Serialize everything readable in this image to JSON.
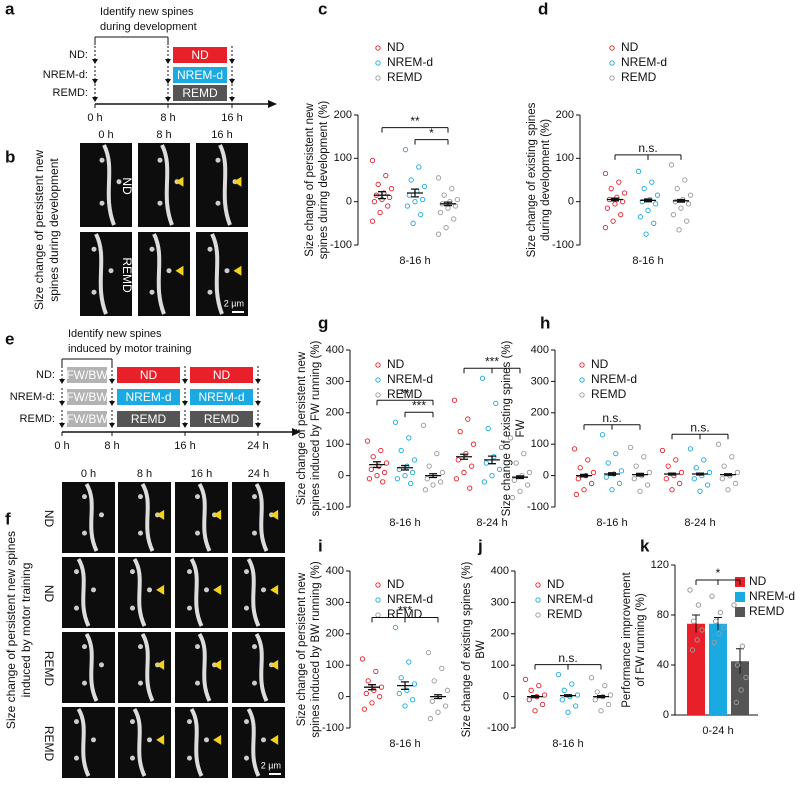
{
  "schematics": [
    {
      "panel": "a",
      "title": [
        "Identify new spines",
        "during development"
      ],
      "times": [
        "0 h",
        "8 h",
        "16 h"
      ],
      "rows": [
        {
          "label": "ND:",
          "boxes": [
            "ND"
          ],
          "colors": [
            "#e8202a"
          ]
        },
        {
          "label": "NREM-d:",
          "boxes": [
            "NREM-d"
          ],
          "colors": [
            "#1ba9e1"
          ]
        },
        {
          "label": "REMD:",
          "boxes": [
            "REMD"
          ],
          "colors": [
            "#555555"
          ]
        }
      ]
    },
    {
      "panel": "e",
      "title": [
        "Identify new spines",
        "induced by motor training"
      ],
      "times": [
        "0 h",
        "8 h",
        "16 h",
        "24 h"
      ],
      "rows": [
        {
          "label": "ND:",
          "boxes": [
            "FW/BW",
            "ND",
            "ND"
          ],
          "colors": [
            "#b3b3b3",
            "#e8202a",
            "#e8202a"
          ]
        },
        {
          "label": "NREM-d:",
          "boxes": [
            "FW/BW",
            "NREM-d",
            "NREM-d"
          ],
          "colors": [
            "#b3b3b3",
            "#1ba9e1",
            "#1ba9e1"
          ]
        },
        {
          "label": "REMD:",
          "boxes": [
            "FW/BW",
            "REMD",
            "REMD"
          ],
          "colors": [
            "#b3b3b3",
            "#555555",
            "#555555"
          ]
        }
      ]
    }
  ],
  "images": [
    {
      "panel": "b",
      "ylabel": [
        "Size change of persistent new",
        "spines during development"
      ],
      "times": [
        "0 h",
        "8 h",
        "16 h"
      ],
      "rows": [
        "ND",
        "REMD"
      ],
      "scale": "2 µm"
    },
    {
      "panel": "f",
      "ylabel": [
        "Size change of persistent new spines",
        "induced by motor training"
      ],
      "times": [
        "0 h",
        "8 h",
        "16 h",
        "24 h"
      ],
      "rows": [
        "ND",
        "ND",
        "REMD",
        "REMD"
      ],
      "scale": "2 µm"
    }
  ],
  "chart_data": [
    {
      "type": "dot",
      "panel": "c",
      "ylabel": [
        "Size change of persistent new",
        "spines during development (%)"
      ],
      "ylim": [
        -100,
        200
      ],
      "yticks": [
        -100,
        0,
        100,
        200
      ],
      "categories": [
        "8-16 h"
      ],
      "series": [
        {
          "name": "ND",
          "color": "#e8202a",
          "values": [
            [
              95,
              60,
              40,
              30,
              20,
              15,
              10,
              5,
              0,
              -10,
              -25,
              -45
            ]
          ],
          "mean": [
            15
          ],
          "sem": [
            8
          ]
        },
        {
          "name": "NREM-d",
          "color": "#1ba9e1",
          "values": [
            [
              120,
              80,
              50,
              35,
              25,
              15,
              5,
              0,
              -10,
              -30,
              -50
            ]
          ],
          "mean": [
            20
          ],
          "sem": [
            9
          ]
        },
        {
          "name": "REMD",
          "color": "#999999",
          "values": [
            [
              55,
              30,
              15,
              5,
              0,
              -5,
              -10,
              -15,
              -25,
              -40,
              -60,
              -75
            ]
          ],
          "mean": [
            -5
          ],
          "sem": [
            4
          ]
        }
      ],
      "comparisons": [
        {
          "category": "8-16 h",
          "label": "**",
          "between": [
            "ND",
            "REMD"
          ]
        },
        {
          "category": "8-16 h",
          "label": "*",
          "between": [
            "NREM-d",
            "REMD"
          ]
        }
      ]
    },
    {
      "type": "dot",
      "panel": "d",
      "ylabel": [
        "Size change of existing spines",
        "during development (%)"
      ],
      "ylim": [
        -100,
        200
      ],
      "yticks": [
        -100,
        0,
        100,
        200
      ],
      "categories": [
        "8-16 h"
      ],
      "series": [
        {
          "name": "ND",
          "color": "#e8202a",
          "values": [
            [
              65,
              45,
              30,
              20,
              10,
              5,
              0,
              -5,
              -15,
              -30,
              -45,
              -60
            ]
          ],
          "mean": [
            5
          ],
          "sem": [
            3
          ]
        },
        {
          "name": "NREM-d",
          "color": "#1ba9e1",
          "values": [
            [
              70,
              45,
              30,
              15,
              5,
              0,
              -5,
              -20,
              -35,
              -50,
              -75
            ]
          ],
          "mean": [
            3
          ],
          "sem": [
            3
          ]
        },
        {
          "name": "REMD",
          "color": "#999999",
          "values": [
            [
              85,
              50,
              30,
              15,
              5,
              0,
              -5,
              -15,
              -30,
              -45,
              -65
            ]
          ],
          "mean": [
            2
          ],
          "sem": [
            3
          ]
        }
      ],
      "comparisons": [
        {
          "category": "8-16 h",
          "label": "n.s.",
          "between": [
            "ND",
            "NREM-d",
            "REMD"
          ]
        }
      ]
    },
    {
      "type": "dot",
      "panel": "g",
      "ylabel": [
        "Size change of persistent new",
        "spines induced by FW running (%)"
      ],
      "ylim": [
        -100,
        400
      ],
      "yticks": [
        -100,
        0,
        100,
        200,
        300,
        400
      ],
      "categories": [
        "8-16 h",
        "8-24 h"
      ],
      "series": [
        {
          "name": "ND",
          "color": "#e8202a",
          "values": [
            [
              110,
              80,
              60,
              40,
              30,
              20,
              10,
              0,
              -10,
              -20
            ],
            [
              240,
              180,
              140,
              100,
              70,
              50,
              30,
              10,
              -10,
              -40
            ]
          ],
          "mean": [
            35,
            60
          ],
          "sem": [
            9,
            8
          ]
        },
        {
          "name": "NREM-d",
          "color": "#1ba9e1",
          "values": [
            [
              170,
              120,
              80,
              50,
              30,
              20,
              10,
              0,
              -10,
              -25
            ],
            [
              310,
              230,
              150,
              90,
              60,
              40,
              20,
              0,
              -20
            ]
          ],
          "mean": [
            25,
            50
          ],
          "sem": [
            7,
            12
          ]
        },
        {
          "name": "REMD",
          "color": "#999999",
          "values": [
            [
              160,
              70,
              30,
              10,
              0,
              -10,
              -20,
              -30,
              -45
            ],
            [
              120,
              70,
              40,
              10,
              0,
              -15,
              -30,
              -50,
              -70
            ]
          ],
          "mean": [
            0,
            -5
          ],
          "sem": [
            6,
            4
          ]
        }
      ],
      "comparisons": [
        {
          "category": "8-16 h",
          "label": "**",
          "between": [
            "ND",
            "REMD"
          ]
        },
        {
          "category": "8-16 h",
          "label": "***",
          "between": [
            "NREM-d",
            "REMD"
          ]
        },
        {
          "category": "8-24 h",
          "label": "***",
          "between": [
            "ND",
            "NREM-d",
            "REMD"
          ]
        }
      ]
    },
    {
      "type": "dot",
      "panel": "h",
      "ylabel": [
        "Size change of existing spines (%)",
        "FW"
      ],
      "ylim": [
        -100,
        400
      ],
      "yticks": [
        -100,
        0,
        100,
        200,
        300,
        400
      ],
      "categories": [
        "8-16 h",
        "8-24 h"
      ],
      "series": [
        {
          "name": "ND",
          "color": "#e8202a",
          "values": [
            [
              85,
              50,
              25,
              10,
              0,
              -10,
              -25,
              -45,
              -60
            ],
            [
              80,
              50,
              30,
              10,
              0,
              -10,
              -25,
              -45
            ]
          ],
          "mean": [
            0,
            5
          ],
          "sem": [
            4,
            3
          ]
        },
        {
          "name": "NREM-d",
          "color": "#1ba9e1",
          "values": [
            [
              130,
              70,
              40,
              15,
              5,
              -5,
              -25,
              -45
            ],
            [
              85,
              50,
              25,
              10,
              0,
              -10,
              -30,
              -50
            ]
          ],
          "mean": [
            5,
            5
          ],
          "sem": [
            4,
            3
          ]
        },
        {
          "name": "REMD",
          "color": "#999999",
          "values": [
            [
              90,
              60,
              30,
              10,
              0,
              -10,
              -30,
              -50
            ],
            [
              100,
              60,
              30,
              10,
              0,
              -10,
              -25,
              -45
            ]
          ],
          "mean": [
            3,
            3
          ],
          "sem": [
            4,
            3
          ]
        }
      ],
      "comparisons": [
        {
          "category": "8-16 h",
          "label": "n.s.",
          "between": [
            "ND",
            "NREM-d",
            "REMD"
          ]
        },
        {
          "category": "8-24 h",
          "label": "n.s.",
          "between": [
            "ND",
            "NREM-d",
            "REMD"
          ]
        }
      ]
    },
    {
      "type": "dot",
      "panel": "i",
      "ylabel": [
        "Size change of persistent new",
        "spines induced by BW running (%)"
      ],
      "ylim": [
        -100,
        400
      ],
      "yticks": [
        -100,
        0,
        100,
        200,
        300,
        400
      ],
      "categories": [
        "8-16 h"
      ],
      "series": [
        {
          "name": "ND",
          "color": "#e8202a",
          "values": [
            [
              120,
              80,
              50,
              30,
              20,
              10,
              0,
              -20,
              -40
            ]
          ],
          "mean": [
            30
          ],
          "sem": [
            8
          ]
        },
        {
          "name": "NREM-d",
          "color": "#1ba9e1",
          "values": [
            [
              220,
              110,
              60,
              40,
              20,
              10,
              -10,
              -30
            ]
          ],
          "mean": [
            35
          ],
          "sem": [
            12
          ]
        },
        {
          "name": "REMD",
          "color": "#999999",
          "values": [
            [
              140,
              90,
              50,
              20,
              0,
              -15,
              -30,
              -50,
              -70
            ]
          ],
          "mean": [
            0
          ],
          "sem": [
            6
          ]
        }
      ],
      "comparisons": [
        {
          "category": "8-16 h",
          "label": "***",
          "between": [
            "ND",
            "NREM-d",
            "REMD"
          ]
        }
      ]
    },
    {
      "type": "dot",
      "panel": "j",
      "ylabel": [
        "Size change of existing spines (%)",
        "BW"
      ],
      "ylim": [
        -100,
        400
      ],
      "yticks": [
        -100,
        0,
        100,
        200,
        300,
        400
      ],
      "categories": [
        "8-16 h"
      ],
      "series": [
        {
          "name": "ND",
          "color": "#e8202a",
          "values": [
            [
              55,
              35,
              20,
              5,
              0,
              -10,
              -25,
              -45
            ]
          ],
          "mean": [
            0
          ],
          "sem": [
            3
          ]
        },
        {
          "name": "NREM-d",
          "color": "#1ba9e1",
          "values": [
            [
              70,
              40,
              20,
              5,
              0,
              -10,
              -30,
              -50
            ]
          ],
          "mean": [
            3
          ],
          "sem": [
            3
          ]
        },
        {
          "name": "REMD",
          "color": "#999999",
          "values": [
            [
              60,
              35,
              15,
              5,
              0,
              -10,
              -25,
              -45
            ]
          ],
          "mean": [
            0
          ],
          "sem": [
            3
          ]
        }
      ],
      "comparisons": [
        {
          "category": "8-16 h",
          "label": "n.s.",
          "between": [
            "ND",
            "NREM-d",
            "REMD"
          ]
        }
      ]
    },
    {
      "type": "bar",
      "panel": "k",
      "ylabel": [
        "Performance improvement",
        "of FW running (%)"
      ],
      "ylim": [
        0,
        120
      ],
      "yticks": [
        0,
        40,
        80,
        120
      ],
      "categories": [
        "0-24 h"
      ],
      "series": [
        {
          "name": "ND",
          "color": "#e8202a",
          "values": [
            73
          ],
          "sem": [
            7
          ],
          "points": [
            [
              100,
              88,
              75,
              68,
              60,
              52
            ]
          ]
        },
        {
          "name": "NREM-d",
          "color": "#1ba9e1",
          "values": [
            73
          ],
          "sem": [
            5
          ],
          "points": [
            [
              95,
              82,
              75,
              70,
              65,
              58
            ]
          ]
        },
        {
          "name": "REMD",
          "color": "#555555",
          "values": [
            43
          ],
          "sem": [
            10
          ],
          "points": [
            [
              88,
              55,
              40,
              30,
              20,
              10
            ]
          ]
        }
      ],
      "comparisons": [
        {
          "category": "0-24 h",
          "label": "*",
          "between": [
            "ND",
            "NREM-d",
            "REMD"
          ]
        }
      ]
    }
  ]
}
